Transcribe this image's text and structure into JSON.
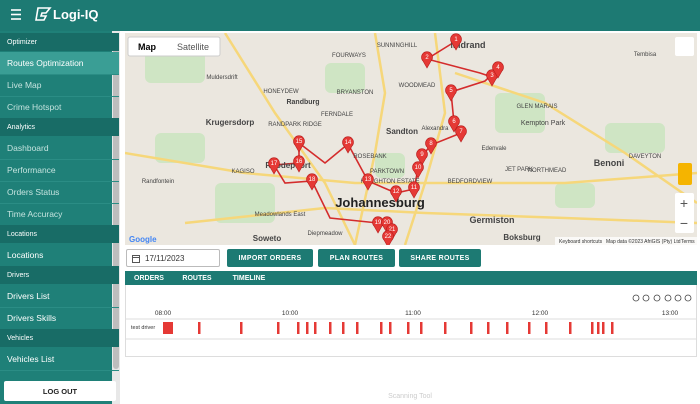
{
  "topbar": {
    "brand": "Logi-IQ"
  },
  "sidebar": {
    "sections": [
      {
        "heading": "Optimizer",
        "items": [
          "Routes Optimization",
          "Live Map",
          "Crime Hotspot"
        ]
      },
      {
        "heading": "Analytics",
        "items": [
          "Dashboard",
          "Performance",
          "Orders Status",
          "Time Accuracy"
        ]
      },
      {
        "heading": "Locations",
        "items": [
          "Locations"
        ]
      },
      {
        "heading": "Drivers",
        "items": [
          "Drivers List",
          "Drivers Skills"
        ]
      },
      {
        "heading": "Vehicles",
        "items": [
          "Vehicles List"
        ]
      }
    ],
    "logout": "LOG OUT"
  },
  "map": {
    "tabs": [
      "Map",
      "Satellite"
    ],
    "place_labels": [
      "Midrand",
      "SUNNINGHILL",
      "FOURWAYS",
      "Tembisa",
      "BRYANSTON",
      "WOODMEAD",
      "Randburg",
      "Sandton",
      "FERNDALE",
      "Alexandra",
      "GLEN MARAIS",
      "Kempton Park",
      "Roodepoort",
      "RANDPARK RIDGE",
      "Krugersdorp",
      "Muldersdrift",
      "HONEYDEW",
      "KAGISO",
      "Randfontein",
      "ROSEBANK",
      "Edenvale",
      "JET PARK",
      "NORTHMEAD",
      "Benoni",
      "DAVEYTON",
      "BEDFORDVIEW",
      "Johannesburg",
      "Germiston",
      "Boksburg",
      "Soweto",
      "Meadowlands East",
      "Diepmeadow",
      "PARKTOWN",
      "HOUGHTON ESTATE"
    ],
    "marker_labels": [
      "1",
      "2",
      "3",
      "4",
      "5",
      "6",
      "7",
      "8",
      "9",
      "10",
      "11",
      "12",
      "13",
      "14",
      "15",
      "16",
      "17",
      "18",
      "19",
      "20",
      "21",
      "22"
    ],
    "attribution": [
      "Google",
      "Keyboard shortcuts",
      "Map data ©2023 AfriGIS (Pty) Ltd",
      "Terms"
    ]
  },
  "toolbar": {
    "date": "17/11/2023",
    "buttons": [
      "IMPORT ORDERS",
      "PLAN ROUTES",
      "SHARE ROUTES"
    ]
  },
  "tabs": [
    "ORDERS",
    "ROUTES",
    "TIMELINE"
  ],
  "timeline": {
    "times": [
      "08:00",
      "10:00",
      "11:00",
      "12:00",
      "13:00"
    ],
    "driver": "test driver"
  },
  "footer": "Scanning Tool"
}
